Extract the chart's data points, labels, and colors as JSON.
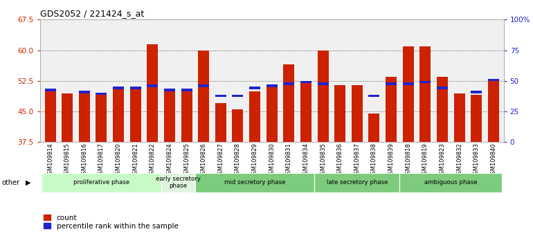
{
  "title": "GDS2052 / 221424_s_at",
  "samples": [
    "GSM109814",
    "GSM109815",
    "GSM109816",
    "GSM109817",
    "GSM109820",
    "GSM109821",
    "GSM109822",
    "GSM109824",
    "GSM109825",
    "GSM109826",
    "GSM109827",
    "GSM109828",
    "GSM109829",
    "GSM109830",
    "GSM109831",
    "GSM109834",
    "GSM109835",
    "GSM109836",
    "GSM109837",
    "GSM109838",
    "GSM109839",
    "GSM109818",
    "GSM109819",
    "GSM109823",
    "GSM109832",
    "GSM109833",
    "GSM109840"
  ],
  "red_bar_heights": [
    50.5,
    49.5,
    50.0,
    49.0,
    51.0,
    51.0,
    61.5,
    50.5,
    50.5,
    60.0,
    47.0,
    45.5,
    50.0,
    51.5,
    56.5,
    52.5,
    60.0,
    51.5,
    51.5,
    44.5,
    53.5,
    61.0,
    61.0,
    53.5,
    49.5,
    49.0,
    52.5
  ],
  "blue_marker_heights": [
    50.0,
    null,
    49.5,
    49.0,
    50.5,
    50.5,
    51.0,
    50.0,
    50.0,
    51.0,
    48.5,
    48.5,
    50.5,
    51.0,
    51.5,
    52.0,
    51.5,
    null,
    null,
    48.5,
    51.5,
    51.5,
    52.0,
    50.5,
    null,
    49.5,
    52.5
  ],
  "phases": [
    {
      "label": "proliferative phase",
      "start": 0,
      "end": 6,
      "color": "#c8fac8"
    },
    {
      "label": "early secretory\nphase",
      "start": 7,
      "end": 8,
      "color": "#e0f5e0"
    },
    {
      "label": "mid secretory phase",
      "start": 9,
      "end": 15,
      "color": "#7dcc7d"
    },
    {
      "label": "late secretory phase",
      "start": 16,
      "end": 20,
      "color": "#7dcc7d"
    },
    {
      "label": "ambiguous phase",
      "start": 21,
      "end": 26,
      "color": "#7dcc7d"
    }
  ],
  "ylim_left": [
    37.5,
    67.5
  ],
  "ylim_right": [
    0,
    100
  ],
  "yticks_left": [
    37.5,
    45.0,
    52.5,
    60.0,
    67.5
  ],
  "yticks_right": [
    0,
    25,
    50,
    75,
    100
  ],
  "bar_color": "#cc2200",
  "blue_color": "#2222cc",
  "axis_label_color_left": "#cc2200",
  "axis_label_color_right": "#2222cc",
  "bg_color": "#ffffff",
  "plot_bg_color": "#f0f0f0",
  "grid_dotted_color": "#555555"
}
